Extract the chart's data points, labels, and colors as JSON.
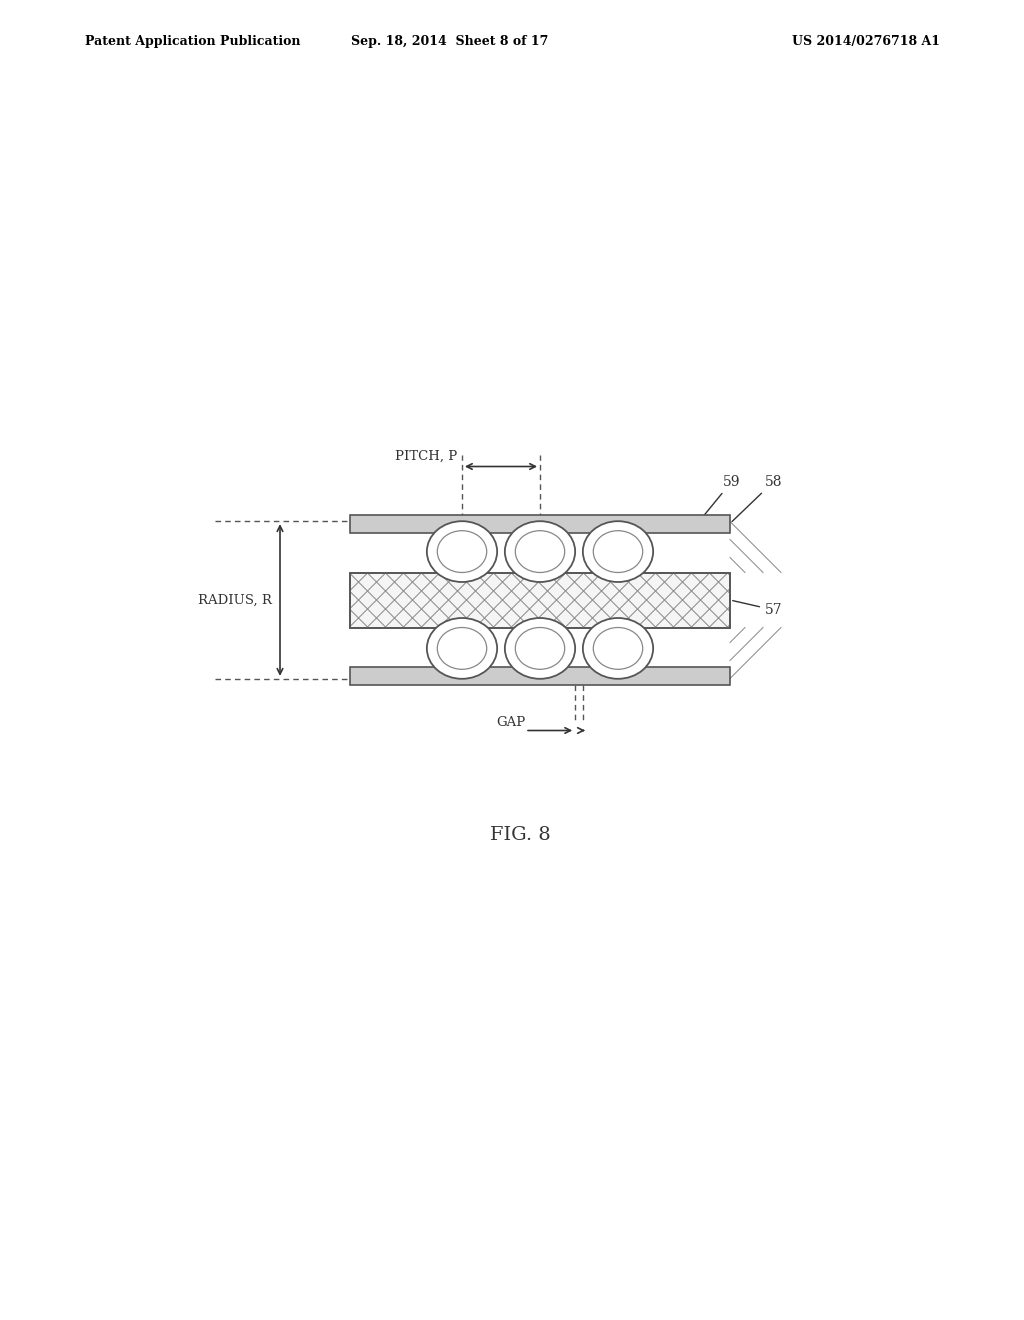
{
  "bg_color": "#ffffff",
  "header_left": "Patent Application Publication",
  "header_mid": "Sep. 18, 2014  Sheet 8 of 17",
  "header_right": "US 2014/0276718 A1",
  "fig_label": "FIG. 8",
  "label_57": "57",
  "label_58": "58",
  "label_59": "59",
  "pitch_label": "PITCH, P",
  "radius_label": "RADIUS, R",
  "gap_label": "GAP"
}
